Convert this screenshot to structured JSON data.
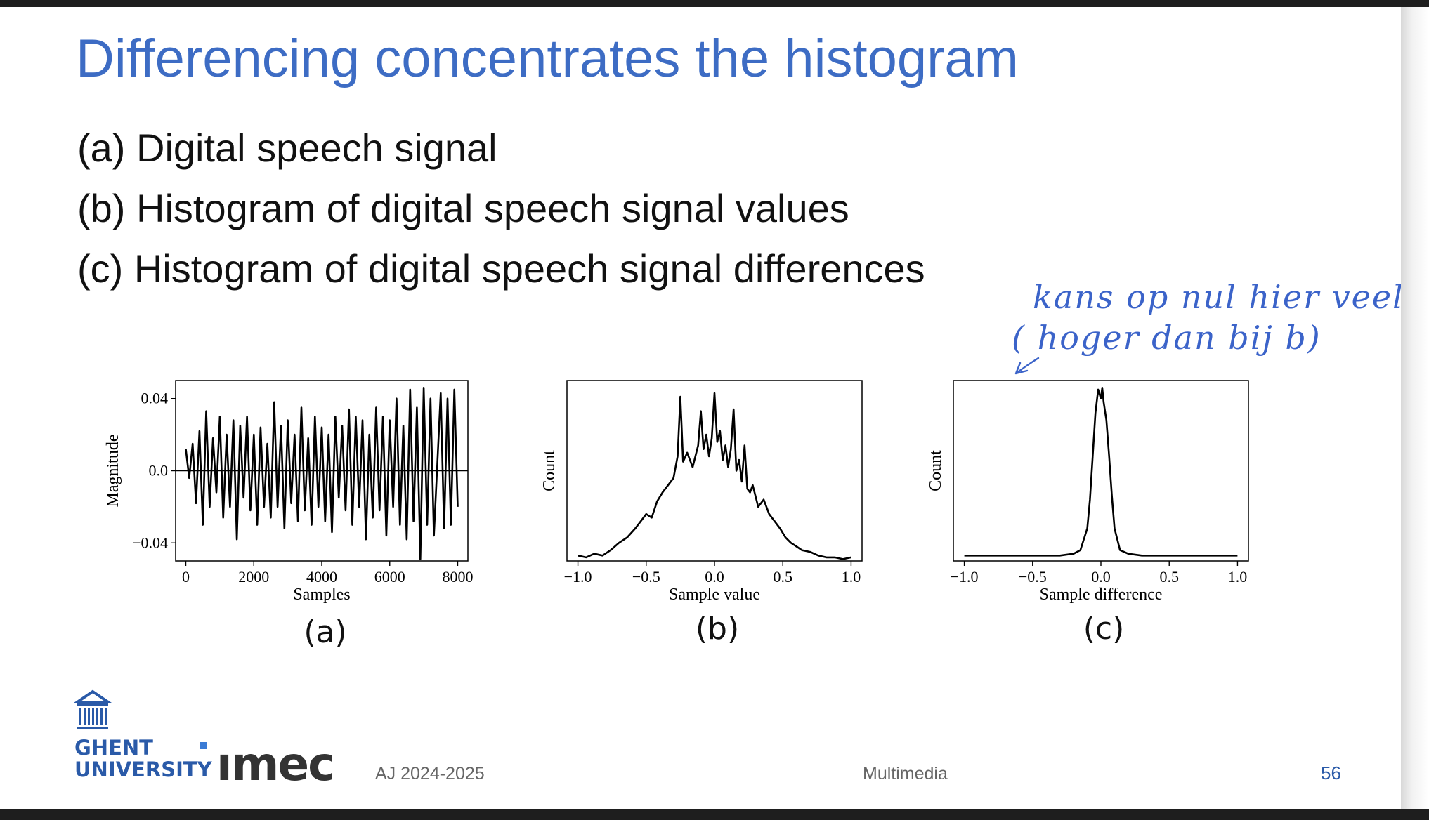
{
  "slide": {
    "title": "Differencing concentrates the histogram",
    "bullets": [
      "(a) Digital speech signal",
      "(b) Histogram of digital speech signal values",
      "(c) Histogram of digital speech signal differences"
    ],
    "handwritten_note": [
      "kans op nul hier veel",
      "( hoger dan bij   b)"
    ],
    "footer": {
      "university": [
        "GHENT",
        "UNIVERSITY"
      ],
      "partner": "ımec",
      "year": "AJ 2024-2025",
      "course": "Multimedia",
      "page": "56"
    },
    "colors": {
      "title": "#3d6cc4",
      "note": "#3b63c9",
      "footer_accent": "#2a5aa8"
    }
  },
  "chart_data": [
    {
      "type": "line",
      "panel_label": "(a)",
      "xlabel": "Samples",
      "ylabel": "Magnitude",
      "xlim": [
        -300,
        8300
      ],
      "ylim": [
        -0.05,
        0.05
      ],
      "xticks": [
        0,
        2000,
        4000,
        6000,
        8000
      ],
      "xtick_labels": [
        "0",
        "2000",
        "4000",
        "6000",
        "8000"
      ],
      "yticks": [
        0.04,
        0.0,
        -0.04
      ],
      "ytick_labels": [
        "0.04",
        "0.0",
        "−0.04"
      ],
      "zero_line": true,
      "x": [
        0,
        100,
        200,
        300,
        400,
        500,
        600,
        700,
        800,
        900,
        1000,
        1100,
        1200,
        1300,
        1400,
        1500,
        1600,
        1700,
        1800,
        1900,
        2000,
        2100,
        2200,
        2300,
        2400,
        2500,
        2600,
        2700,
        2800,
        2900,
        3000,
        3100,
        3200,
        3300,
        3400,
        3500,
        3600,
        3700,
        3800,
        3900,
        4000,
        4100,
        4200,
        4300,
        4400,
        4500,
        4600,
        4700,
        4800,
        4900,
        5000,
        5100,
        5200,
        5300,
        5400,
        5500,
        5600,
        5700,
        5800,
        5900,
        6000,
        6100,
        6200,
        6300,
        6400,
        6500,
        6600,
        6700,
        6800,
        6900,
        7000,
        7100,
        7200,
        7300,
        7500,
        7600,
        7700,
        7800,
        7900,
        8000
      ],
      "values": [
        0.012,
        -0.004,
        0.015,
        -0.018,
        0.022,
        -0.03,
        0.033,
        -0.02,
        0.018,
        -0.012,
        0.03,
        -0.026,
        0.02,
        -0.02,
        0.028,
        -0.038,
        0.025,
        -0.015,
        0.03,
        -0.022,
        0.02,
        -0.03,
        0.024,
        -0.02,
        0.015,
        -0.026,
        0.038,
        -0.02,
        0.025,
        -0.032,
        0.028,
        -0.018,
        0.02,
        -0.028,
        0.035,
        -0.022,
        0.018,
        -0.03,
        0.03,
        -0.02,
        0.024,
        -0.028,
        0.02,
        -0.034,
        0.03,
        -0.015,
        0.025,
        -0.022,
        0.034,
        -0.03,
        0.03,
        -0.02,
        0.028,
        -0.038,
        0.02,
        -0.026,
        0.035,
        -0.022,
        0.03,
        -0.036,
        0.028,
        -0.02,
        0.04,
        -0.03,
        0.025,
        -0.038,
        0.045,
        -0.028,
        0.035,
        -0.049,
        0.046,
        -0.03,
        0.04,
        -0.036,
        0.043,
        -0.032,
        0.04,
        -0.03,
        0.045,
        -0.02
      ]
    },
    {
      "type": "line",
      "panel_label": "(b)",
      "xlabel": "Sample value",
      "ylabel": "Count",
      "xlim": [
        -1.08,
        1.08
      ],
      "ylim": [
        0,
        100
      ],
      "xticks": [
        -1.0,
        -0.5,
        0.0,
        0.5,
        1.0
      ],
      "xtick_labels": [
        "−1.0",
        "−0.5",
        "0.0",
        "0.5",
        "1.0"
      ],
      "x": [
        -1.0,
        -0.94,
        -0.88,
        -0.82,
        -0.76,
        -0.7,
        -0.64,
        -0.58,
        -0.54,
        -0.5,
        -0.46,
        -0.42,
        -0.38,
        -0.34,
        -0.3,
        -0.27,
        -0.25,
        -0.23,
        -0.2,
        -0.16,
        -0.12,
        -0.1,
        -0.08,
        -0.06,
        -0.04,
        -0.02,
        0.0,
        0.02,
        0.04,
        0.06,
        0.08,
        0.1,
        0.12,
        0.14,
        0.16,
        0.18,
        0.2,
        0.22,
        0.24,
        0.26,
        0.28,
        0.32,
        0.36,
        0.4,
        0.44,
        0.48,
        0.52,
        0.56,
        0.6,
        0.64,
        0.7,
        0.76,
        0.82,
        0.88,
        0.94,
        1.0
      ],
      "values": [
        3,
        2,
        4,
        3,
        6,
        10,
        13,
        18,
        22,
        26,
        24,
        33,
        38,
        42,
        46,
        58,
        91,
        55,
        60,
        52,
        64,
        83,
        62,
        70,
        58,
        68,
        93,
        66,
        72,
        56,
        64,
        52,
        62,
        84,
        50,
        56,
        44,
        64,
        40,
        38,
        42,
        30,
        34,
        26,
        22,
        18,
        13,
        10,
        8,
        6,
        5,
        3,
        2,
        2,
        1,
        2
      ]
    },
    {
      "type": "line",
      "panel_label": "(c)",
      "xlabel": "Sample difference",
      "ylabel": "Count",
      "xlim": [
        -1.08,
        1.08
      ],
      "ylim": [
        0,
        100
      ],
      "xticks": [
        -1.0,
        -0.5,
        0.0,
        0.5,
        1.0
      ],
      "xtick_labels": [
        "−1.0",
        "−0.5",
        "0.0",
        "0.5",
        "1.0"
      ],
      "x": [
        -1.0,
        -0.5,
        -0.3,
        -0.2,
        -0.15,
        -0.1,
        -0.08,
        -0.06,
        -0.04,
        -0.02,
        0.0,
        0.01,
        0.02,
        0.04,
        0.06,
        0.08,
        0.1,
        0.14,
        0.2,
        0.3,
        0.5,
        1.0
      ],
      "values": [
        3,
        3,
        3,
        4,
        6,
        18,
        34,
        58,
        82,
        95,
        90,
        96,
        88,
        78,
        58,
        36,
        18,
        6,
        4,
        3,
        3,
        3
      ]
    }
  ]
}
